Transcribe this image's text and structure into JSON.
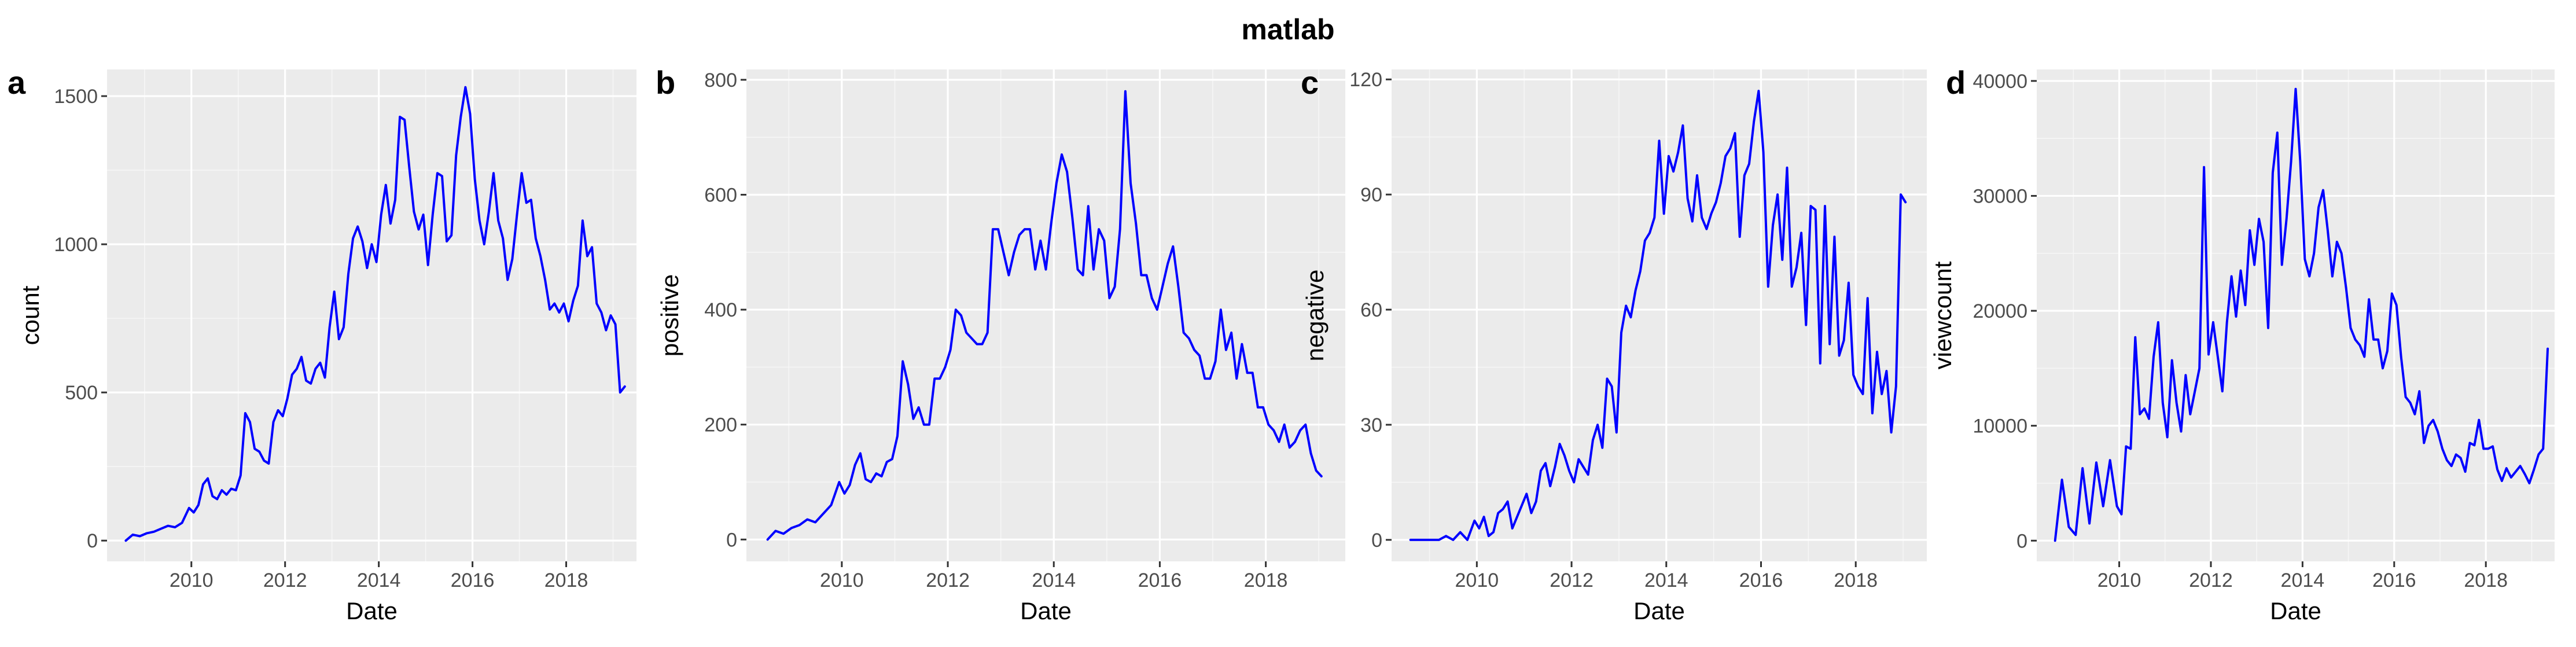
{
  "title": "matlab",
  "line_color": "#0000FF",
  "chart_data": [
    {
      "type": "line",
      "panel_tag": "a",
      "xlabel": "Date",
      "ylabel": "count",
      "xlim": [
        2008.2,
        2019.5
      ],
      "ylim": [
        -70,
        1590
      ],
      "x_ticks": [
        2010,
        2012,
        2014,
        2016,
        2018
      ],
      "y_ticks": [
        0,
        500,
        1000,
        1500
      ],
      "y_tick_labels": [
        "0",
        "500",
        "1000",
        "1500"
      ],
      "series": [
        {
          "x": [
            2008.6,
            2008.75,
            2008.9,
            2009.05,
            2009.2,
            2009.35,
            2009.5,
            2009.65,
            2009.8,
            2009.95,
            2010.05,
            2010.15,
            2010.25,
            2010.35,
            2010.45,
            2010.55,
            2010.65,
            2010.75,
            2010.85,
            2010.95,
            2011.05,
            2011.15,
            2011.25,
            2011.35,
            2011.45,
            2011.55,
            2011.65,
            2011.75,
            2011.85,
            2011.95,
            2012.05,
            2012.15,
            2012.25,
            2012.35,
            2012.45,
            2012.55,
            2012.65,
            2012.75,
            2012.85,
            2012.95,
            2013.05,
            2013.15,
            2013.25,
            2013.35,
            2013.45,
            2013.55,
            2013.65,
            2013.75,
            2013.85,
            2013.95,
            2014.05,
            2014.15,
            2014.25,
            2014.35,
            2014.45,
            2014.55,
            2014.65,
            2014.75,
            2014.85,
            2014.95,
            2015.05,
            2015.15,
            2015.25,
            2015.35,
            2015.45,
            2015.55,
            2015.65,
            2015.75,
            2015.85,
            2015.95,
            2016.05,
            2016.15,
            2016.25,
            2016.35,
            2016.45,
            2016.55,
            2016.65,
            2016.75,
            2016.85,
            2016.95,
            2017.05,
            2017.15,
            2017.25,
            2017.35,
            2017.45,
            2017.55,
            2017.65,
            2017.75,
            2017.85,
            2017.95,
            2018.05,
            2018.15,
            2018.25,
            2018.35,
            2018.45,
            2018.55,
            2018.65,
            2018.75,
            2018.85,
            2018.95,
            2019.05
          ],
          "y": [
            0,
            20,
            15,
            25,
            30,
            40,
            50,
            45,
            60,
            110,
            95,
            120,
            190,
            210,
            150,
            140,
            170,
            155,
            175,
            170,
            220,
            430,
            400,
            310,
            300,
            270,
            260,
            400,
            440,
            420,
            480,
            560,
            580,
            620,
            540,
            530,
            580,
            600,
            550,
            720,
            840,
            680,
            720,
            900,
            1020,
            1060,
            1010,
            920,
            1000,
            940,
            1100,
            1200,
            1070,
            1150,
            1430,
            1420,
            1260,
            1110,
            1050,
            1100,
            930,
            1100,
            1240,
            1230,
            1010,
            1030,
            1300,
            1430,
            1530,
            1440,
            1220,
            1080,
            1000,
            1110,
            1240,
            1080,
            1020,
            880,
            950,
            1100,
            1240,
            1140,
            1150,
            1020,
            960,
            880,
            780,
            800,
            770,
            800,
            740,
            810,
            860,
            1080,
            960,
            990,
            800,
            770,
            710,
            760,
            730
          ],
          "x_trim": [
            2019.15,
            2019.25
          ],
          "y_trim": [
            500,
            520
          ]
        }
      ]
    },
    {
      "type": "line",
      "panel_tag": "b",
      "xlabel": "Date",
      "ylabel": "positive",
      "xlim": [
        2008.2,
        2019.5
      ],
      "ylim": [
        -38,
        818
      ],
      "x_ticks": [
        2010,
        2012,
        2014,
        2016,
        2018
      ],
      "y_ticks": [
        0,
        200,
        400,
        600,
        800
      ],
      "y_tick_labels": [
        "0",
        "200",
        "400",
        "600",
        "800"
      ],
      "series": [
        {
          "x": [
            2008.6,
            2008.75,
            2008.9,
            2009.05,
            2009.2,
            2009.35,
            2009.5,
            2009.65,
            2009.8,
            2009.95,
            2010.05,
            2010.15,
            2010.25,
            2010.35,
            2010.45,
            2010.55,
            2010.65,
            2010.75,
            2010.85,
            2010.95,
            2011.05,
            2011.15,
            2011.25,
            2011.35,
            2011.45,
            2011.55,
            2011.65,
            2011.75,
            2011.85,
            2011.95,
            2012.05,
            2012.15,
            2012.25,
            2012.35,
            2012.45,
            2012.55,
            2012.65,
            2012.75,
            2012.85,
            2012.95,
            2013.05,
            2013.15,
            2013.25,
            2013.35,
            2013.45,
            2013.55,
            2013.65,
            2013.75,
            2013.85,
            2013.95,
            2014.05,
            2014.15,
            2014.25,
            2014.35,
            2014.45,
            2014.55,
            2014.65,
            2014.75,
            2014.85,
            2014.95,
            2015.05,
            2015.15,
            2015.25,
            2015.35,
            2015.45,
            2015.55,
            2015.65,
            2015.75,
            2015.85,
            2015.95,
            2016.05,
            2016.15,
            2016.25,
            2016.35,
            2016.45,
            2016.55,
            2016.65,
            2016.75,
            2016.85,
            2016.95,
            2017.05,
            2017.15,
            2017.25,
            2017.35,
            2017.45,
            2017.55,
            2017.65,
            2017.75,
            2017.85,
            2017.95,
            2018.05,
            2018.15,
            2018.25,
            2018.35,
            2018.45,
            2018.55,
            2018.65,
            2018.75,
            2018.85,
            2018.95,
            2019.05
          ],
          "y": [
            0,
            15,
            10,
            20,
            25,
            35,
            30,
            45,
            60,
            100,
            80,
            95,
            130,
            150,
            105,
            100,
            115,
            110,
            135,
            140,
            180,
            310,
            270,
            210,
            230,
            200,
            200,
            280,
            280,
            300,
            330,
            400,
            390,
            360,
            350,
            340,
            340,
            360,
            540,
            540,
            500,
            460,
            500,
            530,
            540,
            540,
            470,
            520,
            470,
            550,
            620,
            670,
            640,
            560,
            470,
            460,
            580,
            470,
            540,
            520,
            420,
            440,
            540,
            780,
            620,
            550,
            460,
            460,
            420,
            400,
            440,
            480,
            510,
            440,
            360,
            350,
            330,
            320,
            280,
            280,
            310,
            400,
            330,
            360,
            280,
            340,
            290,
            290,
            230,
            230,
            200,
            190,
            170,
            200,
            160,
            170,
            190,
            200,
            150,
            120,
            110
          ],
          "x_trim": [],
          "y_trim": []
        }
      ]
    },
    {
      "type": "line",
      "panel_tag": "c",
      "xlabel": "Date",
      "ylabel": "negative",
      "xlim": [
        2008.2,
        2019.5
      ],
      "ylim": [
        -5.6,
        122.6
      ],
      "x_ticks": [
        2010,
        2012,
        2014,
        2016,
        2018
      ],
      "y_ticks": [
        0,
        30,
        60,
        90,
        120
      ],
      "y_tick_labels": [
        "0",
        "30",
        "60",
        "90",
        "120"
      ],
      "series": [
        {
          "x": [
            2008.6,
            2008.75,
            2008.9,
            2009.05,
            2009.2,
            2009.35,
            2009.5,
            2009.65,
            2009.8,
            2009.95,
            2010.05,
            2010.15,
            2010.25,
            2010.35,
            2010.45,
            2010.55,
            2010.65,
            2010.75,
            2010.85,
            2010.95,
            2011.05,
            2011.15,
            2011.25,
            2011.35,
            2011.45,
            2011.55,
            2011.65,
            2011.75,
            2011.85,
            2011.95,
            2012.05,
            2012.15,
            2012.25,
            2012.35,
            2012.45,
            2012.55,
            2012.65,
            2012.75,
            2012.85,
            2012.95,
            2013.05,
            2013.15,
            2013.25,
            2013.35,
            2013.45,
            2013.55,
            2013.65,
            2013.75,
            2013.85,
            2013.95,
            2014.05,
            2014.15,
            2014.25,
            2014.35,
            2014.45,
            2014.55,
            2014.65,
            2014.75,
            2014.85,
            2014.95,
            2015.05,
            2015.15,
            2015.25,
            2015.35,
            2015.45,
            2015.55,
            2015.65,
            2015.75,
            2015.85,
            2015.95,
            2016.05,
            2016.15,
            2016.25,
            2016.35,
            2016.45,
            2016.55,
            2016.65,
            2016.75,
            2016.85,
            2016.95,
            2017.05,
            2017.15,
            2017.25,
            2017.35,
            2017.45,
            2017.55,
            2017.65,
            2017.75,
            2017.85,
            2017.95,
            2018.05,
            2018.15,
            2018.25,
            2018.35,
            2018.45,
            2018.55,
            2018.65,
            2018.75,
            2018.85,
            2018.95,
            2019.05
          ],
          "y": [
            0,
            0,
            0,
            0,
            0,
            1,
            0,
            2,
            0,
            5,
            3,
            6,
            1,
            2,
            7,
            8,
            10,
            3,
            6,
            9,
            12,
            7,
            10,
            18,
            20,
            14,
            19,
            25,
            22,
            18,
            15,
            21,
            19,
            17,
            26,
            30,
            24,
            42,
            40,
            28,
            54,
            61,
            58,
            65,
            70,
            78,
            80,
            84,
            104,
            85,
            100,
            96,
            101,
            108,
            89,
            83,
            95,
            84,
            81,
            85,
            88,
            93,
            100,
            102,
            106,
            79,
            95,
            98,
            109,
            117,
            101,
            66,
            82,
            90,
            73,
            97,
            66,
            71,
            80,
            56,
            87,
            86,
            46,
            87,
            51,
            79,
            48,
            52,
            67,
            43,
            40,
            38,
            63,
            33,
            49,
            38,
            44,
            28,
            40,
            90,
            88
          ],
          "x_trim": [],
          "y_trim": []
        }
      ]
    },
    {
      "type": "line",
      "panel_tag": "d",
      "xlabel": "Date",
      "ylabel": "viewcount",
      "xlim": [
        2008.2,
        2019.5
      ],
      "ylim": [
        -1800,
        41000
      ],
      "x_ticks": [
        2010,
        2012,
        2014,
        2016,
        2018
      ],
      "y_ticks": [
        0,
        10000,
        20000,
        30000,
        40000
      ],
      "y_tick_labels": [
        "0",
        "10000",
        "20000",
        "30000",
        "40000"
      ],
      "series": [
        {
          "x": [
            2008.6,
            2008.75,
            2008.9,
            2009.05,
            2009.2,
            2009.35,
            2009.5,
            2009.65,
            2009.8,
            2009.95,
            2010.05,
            2010.15,
            2010.25,
            2010.35,
            2010.45,
            2010.55,
            2010.65,
            2010.75,
            2010.85,
            2010.95,
            2011.05,
            2011.15,
            2011.25,
            2011.35,
            2011.45,
            2011.55,
            2011.65,
            2011.75,
            2011.85,
            2011.95,
            2012.05,
            2012.15,
            2012.25,
            2012.35,
            2012.45,
            2012.55,
            2012.65,
            2012.75,
            2012.85,
            2012.95,
            2013.05,
            2013.15,
            2013.25,
            2013.35,
            2013.45,
            2013.55,
            2013.65,
            2013.75,
            2013.85,
            2013.95,
            2014.05,
            2014.15,
            2014.25,
            2014.35,
            2014.45,
            2014.55,
            2014.65,
            2014.75,
            2014.85,
            2014.95,
            2015.05,
            2015.15,
            2015.25,
            2015.35,
            2015.45,
            2015.55,
            2015.65,
            2015.75,
            2015.85,
            2015.95,
            2016.05,
            2016.15,
            2016.25,
            2016.35,
            2016.45,
            2016.55,
            2016.65,
            2016.75,
            2016.85,
            2016.95,
            2017.05,
            2017.15,
            2017.25,
            2017.35,
            2017.45,
            2017.55,
            2017.65,
            2017.75,
            2017.85,
            2017.95,
            2018.05,
            2018.15,
            2018.25,
            2018.35,
            2018.45,
            2018.55,
            2018.65,
            2018.75,
            2018.85,
            2018.95,
            2019.05
          ],
          "y": [
            0,
            5300,
            1200,
            500,
            6300,
            1500,
            6800,
            3000,
            7000,
            3000,
            2300,
            8200,
            8000,
            17700,
            11000,
            11500,
            10600,
            16000,
            19000,
            12000,
            9000,
            15700,
            12000,
            9500,
            14400,
            11000,
            13000,
            15000,
            32500,
            16200,
            19000,
            16000,
            13000,
            19000,
            23000,
            19500,
            23500,
            20500,
            27000,
            24000,
            28000,
            26000,
            18500,
            32000,
            35500,
            24000,
            28000,
            33000,
            39300,
            33000,
            24500,
            23000,
            25000,
            29000,
            30500,
            27000,
            23000,
            26000,
            25000,
            22000,
            18500,
            17500,
            17000,
            16000,
            21000,
            17500,
            17500,
            15000,
            16500,
            21500,
            20500,
            16000,
            12500,
            12000,
            11000,
            13000,
            8500,
            10000,
            10500,
            9500,
            8000,
            7000,
            6500,
            7500,
            7200,
            6000,
            8500,
            8300,
            10500,
            8000,
            8000,
            8200,
            6200,
            5200,
            6300,
            5500,
            6000,
            6500,
            5800,
            5000,
            6200
          ],
          "x_trim": [
            2019.15,
            2019.25,
            2019.35
          ],
          "y_trim": [
            7500,
            8000,
            16700
          ]
        }
      ]
    }
  ]
}
